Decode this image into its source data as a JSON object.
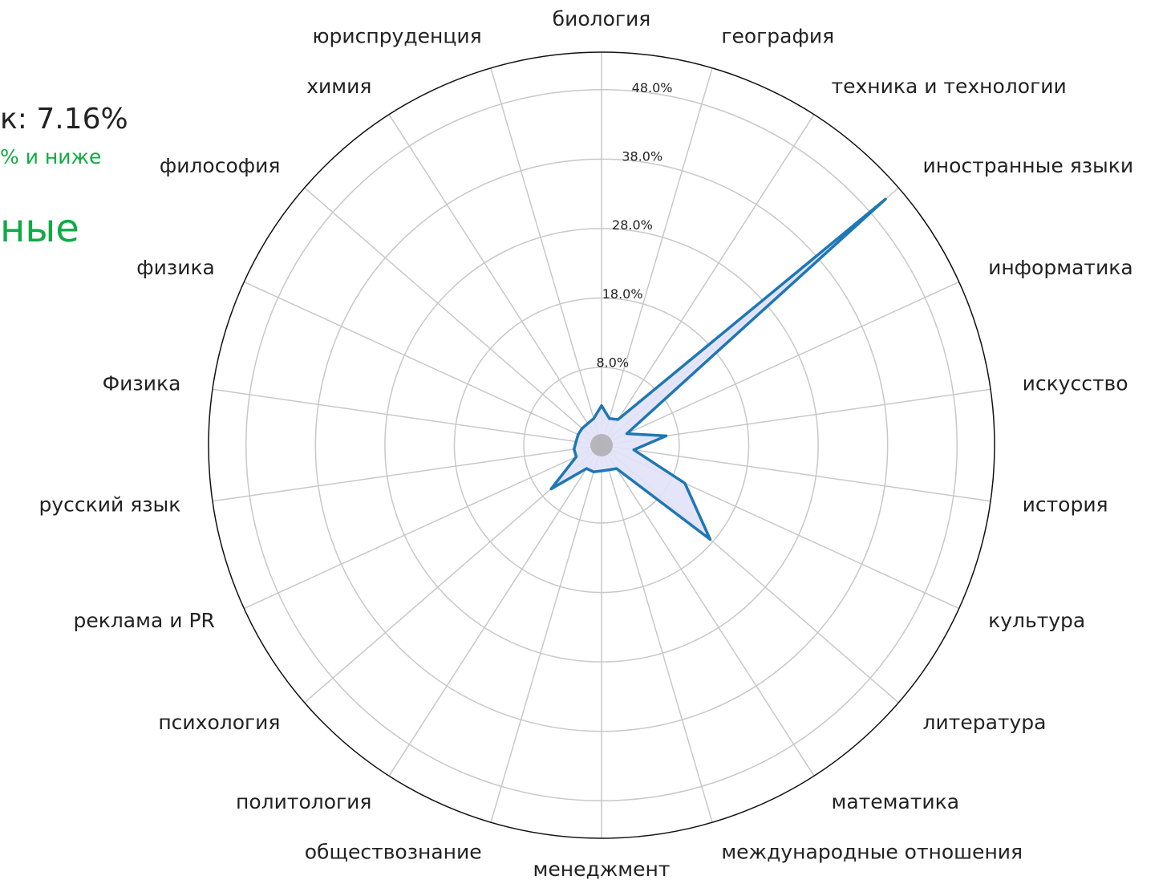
{
  "chart_data": {
    "type": "radar",
    "side_texts": [
      "к: 7.16%",
      "% и ниже",
      "ные"
    ],
    "categories": [
      "биология",
      "география",
      "техника и технологии",
      "иностранные языки",
      "информатика",
      "искусство",
      "история",
      "культура",
      "литература",
      "математика",
      "международные отношения",
      "менеджмент",
      "обществознание",
      "политология",
      "психология",
      "реклама и PR",
      "русский язык",
      "Физика",
      "физика",
      "философия",
      "химия",
      "юриспруденция"
    ],
    "series": [
      {
        "color": "#1f77b4",
        "fill": "#e2e2fa",
        "values": [
          2.5,
          0.8,
          1.2,
          50.9,
          0.8,
          6.2,
          1.5,
          10.0,
          17.5,
          0.8,
          0.5,
          0.5,
          0.8,
          0.8,
          6.4,
          0.8,
          0.8,
          0.5,
          0.5,
          0.5,
          0.5,
          0.8
        ]
      }
    ],
    "ylim": [
      -3.2,
      53.4
    ],
    "yticks": [
      {
        "value": 8,
        "label": "8.0%"
      },
      {
        "value": 18,
        "label": "18.0%"
      },
      {
        "value": 28,
        "label": "28.0%"
      },
      {
        "value": 38,
        "label": "38.0%"
      },
      {
        "value": 48,
        "label": "48.0%"
      }
    ],
    "grid": true
  }
}
